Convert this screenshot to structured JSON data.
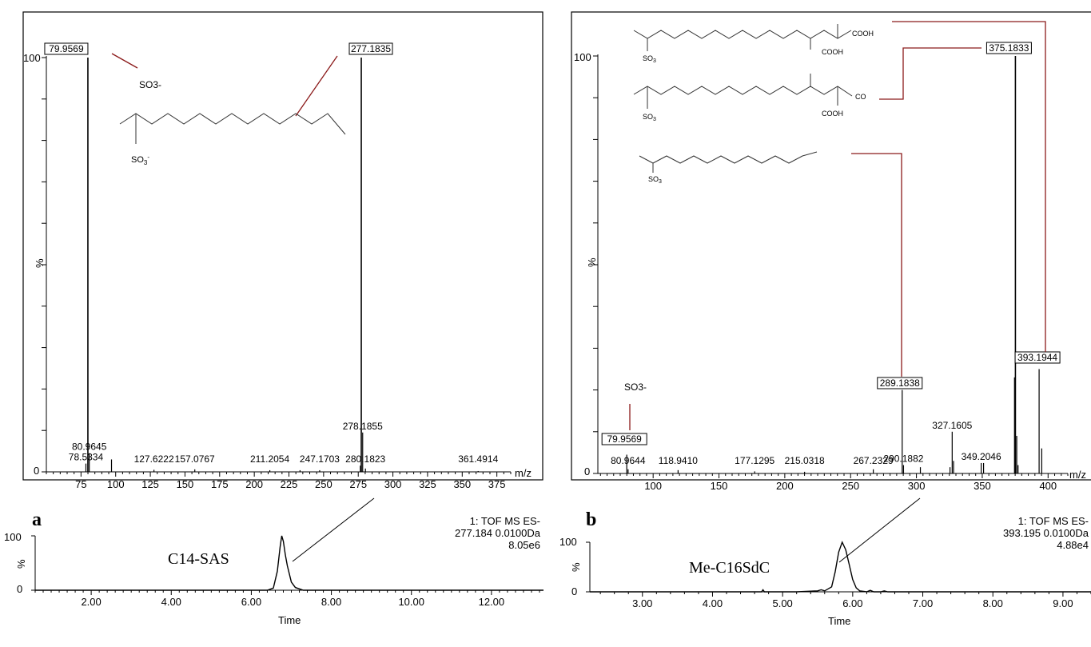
{
  "chart_data": [
    {
      "id": "a_ms",
      "type": "bar",
      "panel_label": "a",
      "x_unit_label": "m/z",
      "y_label": "%",
      "xlim": [
        50,
        385
      ],
      "ylim": [
        0,
        100
      ],
      "x_ticks": [
        "75",
        "100",
        "125",
        "150",
        "175",
        "200",
        "225",
        "250",
        "275",
        "300",
        "325",
        "350",
        "375"
      ],
      "y_ticks": [
        "0",
        "100"
      ],
      "peaks": [
        {
          "x": 78.5334,
          "y": 2
        },
        {
          "x": 79.9569,
          "y": 100
        },
        {
          "x": 80.9645,
          "y": 4.5
        },
        {
          "x": 97.0,
          "y": 3
        },
        {
          "x": 127.6222,
          "y": 0.5
        },
        {
          "x": 157.0767,
          "y": 0.6
        },
        {
          "x": 211.2054,
          "y": 0.4
        },
        {
          "x": 233.0,
          "y": 0.4
        },
        {
          "x": 247.1703,
          "y": 0.4
        },
        {
          "x": 276.5,
          "y": 1.5
        },
        {
          "x": 277.1835,
          "y": 100
        },
        {
          "x": 278.1855,
          "y": 9.5
        },
        {
          "x": 280.1823,
          "y": 0.8
        },
        {
          "x": 361.4914,
          "y": 0.2
        }
      ],
      "labels": [
        {
          "text": "78.5334",
          "x": 78.5334,
          "y": 2
        },
        {
          "text": "80.9645",
          "x": 80.9645,
          "y": 4.5
        },
        {
          "text": "127.6222",
          "x": 127.6222,
          "y": 0.5
        },
        {
          "text": "157.0767",
          "x": 157.0767,
          "y": 0.6
        },
        {
          "text": "211.2054",
          "x": 211.2054,
          "y": 0.4
        },
        {
          "text": "247.1703",
          "x": 247.1703,
          "y": 0.4
        },
        {
          "text": "278.1855",
          "x": 278.1855,
          "y": 9.5
        },
        {
          "text": "280.1823",
          "x": 280.1823,
          "y": 0.8
        },
        {
          "text": "361.4914",
          "x": 361.4914,
          "y": 0.2
        }
      ],
      "boxed_labels": [
        {
          "text": "79.9569",
          "x": 79.9569
        },
        {
          "text": "277.1835",
          "x": 277.1835
        }
      ],
      "annotations": [
        "SO3-"
      ]
    },
    {
      "id": "b_ms",
      "type": "bar",
      "panel_label": "b",
      "x_unit_label": "m/z",
      "y_label": "%",
      "xlim": [
        58,
        415
      ],
      "ylim": [
        0,
        100
      ],
      "x_ticks": [
        "100",
        "150",
        "200",
        "250",
        "300",
        "350",
        "400"
      ],
      "y_ticks": [
        "0",
        "100"
      ],
      "peaks": [
        {
          "x": 79.9569,
          "y": 4.5
        },
        {
          "x": 80.9644,
          "y": 1
        },
        {
          "x": 118.941,
          "y": 0.8
        },
        {
          "x": 177.1295,
          "y": 0.5
        },
        {
          "x": 215.0318,
          "y": 0.4
        },
        {
          "x": 267.2329,
          "y": 1
        },
        {
          "x": 289.1838,
          "y": 20
        },
        {
          "x": 290.1882,
          "y": 2
        },
        {
          "x": 303.0,
          "y": 1.5
        },
        {
          "x": 325.5,
          "y": 1.5
        },
        {
          "x": 327.1605,
          "y": 10
        },
        {
          "x": 328.2,
          "y": 3
        },
        {
          "x": 349.2046,
          "y": 2.5
        },
        {
          "x": 351.0,
          "y": 2.5
        },
        {
          "x": 375.1833,
          "y": 100
        },
        {
          "x": 374.5,
          "y": 23
        },
        {
          "x": 376.2,
          "y": 9
        },
        {
          "x": 377.2,
          "y": 2
        },
        {
          "x": 393.1944,
          "y": 25
        },
        {
          "x": 395.2,
          "y": 6
        }
      ],
      "labels": [
        {
          "text": "80.9644",
          "x": 80.9644,
          "y": 1
        },
        {
          "text": "118.9410",
          "x": 118.941,
          "y": 0.8
        },
        {
          "text": "177.1295",
          "x": 177.1295,
          "y": 0.5
        },
        {
          "text": "215.0318",
          "x": 215.0318,
          "y": 0.4
        },
        {
          "text": "267.2329",
          "x": 267.2329,
          "y": 1
        },
        {
          "text": "290.1882",
          "x": 290.1882,
          "y": 2
        },
        {
          "text": "327.1605",
          "x": 327.1605,
          "y": 10
        },
        {
          "text": "349.2046",
          "x": 349.2046,
          "y": 2.5
        }
      ],
      "boxed_labels": [
        {
          "text": "79.9569",
          "x": 79.9569
        },
        {
          "text": "289.1838",
          "x": 289.1838
        },
        {
          "text": "375.1833",
          "x": 375.1833
        },
        {
          "text": "393.1944",
          "x": 393.1944
        }
      ],
      "annotations": [
        "SO3-"
      ]
    },
    {
      "id": "a_chrom",
      "type": "line",
      "x_label": "Time",
      "y_label": "%",
      "xlim": [
        0.6,
        13.3
      ],
      "ylim": [
        0,
        100
      ],
      "x_ticks": [
        "2.00",
        "4.00",
        "6.00",
        "8.00",
        "10.00",
        "12.00"
      ],
      "y_ticks": [
        "0",
        "100"
      ],
      "compound": "C14-SAS",
      "info": [
        "1: TOF MS ES-",
        "277.184 0.0100Da",
        "8.05e6"
      ],
      "x": [
        0.6,
        6.4,
        6.55,
        6.65,
        6.72,
        6.76,
        6.8,
        6.85,
        6.9,
        6.95,
        7.0,
        7.1,
        7.3,
        13.3
      ],
      "y": [
        0,
        0,
        4,
        35,
        80,
        100,
        90,
        65,
        45,
        30,
        15,
        5,
        0,
        0
      ]
    },
    {
      "id": "b_chrom",
      "type": "line",
      "x_label": "Time",
      "y_label": "%",
      "xlim": [
        2.25,
        9.4
      ],
      "ylim": [
        0,
        100
      ],
      "x_ticks": [
        "3.00",
        "4.00",
        "5.00",
        "6.00",
        "7.00",
        "8.00",
        "9.00"
      ],
      "y_ticks": [
        "0",
        "100"
      ],
      "compound": "Me-C16SdC",
      "info": [
        "1: TOF MS ES-",
        "393.195 0.0100Da",
        "4.88e4"
      ],
      "x": [
        2.25,
        4.7,
        4.72,
        4.74,
        5.2,
        5.5,
        5.55,
        5.6,
        5.7,
        5.75,
        5.8,
        5.85,
        5.9,
        5.95,
        6.0,
        6.05,
        6.1,
        6.2,
        6.25,
        6.3,
        6.4,
        6.45,
        6.5,
        9.4
      ],
      "y": [
        0,
        0,
        4,
        0,
        0,
        2,
        4,
        2,
        10,
        40,
        80,
        100,
        85,
        55,
        25,
        8,
        2,
        0,
        3,
        0,
        0,
        2,
        0,
        0
      ]
    }
  ]
}
